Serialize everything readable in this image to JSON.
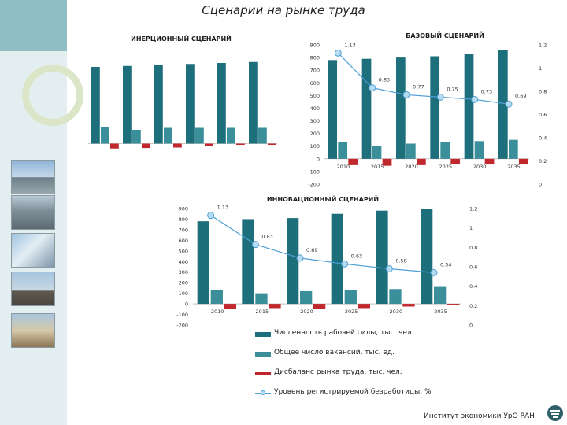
{
  "title": "Сценарии на рынке труда",
  "footer": {
    "institute": "Институт экономики УрО РАН"
  },
  "colors": {
    "labor_force": "#1e6f7c",
    "vacancies": "#3a8f9a",
    "imbalance": "#c0282d",
    "unemployment_line": "#4f9fd6",
    "marker_fill": "#b8dcef",
    "side_panel": "#e3eef0"
  },
  "legend": [
    {
      "key": "labor_force",
      "label": "Численность рабочей силы, тыс. чел."
    },
    {
      "key": "vacancies",
      "label": "Общее число вакансий, тыс. ед."
    },
    {
      "key": "imbalance",
      "label": "Дисбаланс рынка труда, тыс. чел."
    },
    {
      "key": "unemployment",
      "label": "Уровень регистрируемой безработицы, %"
    }
  ],
  "chart_data": [
    {
      "id": "inertial",
      "type": "bar",
      "title": "ИНЕРЦИОННЫЙ СЦЕНАРИЙ",
      "categories": [
        "",
        "",
        "",
        "",
        "",
        ""
      ],
      "ylim": [
        -100,
        900
      ],
      "show_axis_labels": false,
      "series": [
        {
          "key": "labor_force",
          "values": [
            780,
            790,
            800,
            810,
            820,
            830
          ]
        },
        {
          "key": "vacancies",
          "values": [
            170,
            140,
            160,
            160,
            160,
            160
          ]
        },
        {
          "key": "imbalance",
          "values": [
            -50,
            -45,
            -40,
            -20,
            -10,
            0
          ]
        }
      ]
    },
    {
      "id": "base",
      "type": "bar",
      "title": "БАЗОВЫЙ СЦЕНАРИЙ",
      "categories": [
        "2010",
        "2015",
        "2020",
        "2025",
        "2030",
        "2035"
      ],
      "ylim": [
        -200,
        900
      ],
      "yticks": [
        -200,
        -100,
        0,
        100,
        200,
        300,
        400,
        500,
        600,
        700,
        800,
        900
      ],
      "y2lim": [
        0,
        1.2
      ],
      "y2ticks": [
        0,
        0.2,
        0.4,
        0.6,
        0.8,
        1,
        1.2
      ],
      "series": [
        {
          "key": "labor_force",
          "values": [
            780,
            790,
            800,
            810,
            830,
            860
          ]
        },
        {
          "key": "vacancies",
          "values": [
            130,
            100,
            120,
            130,
            140,
            150
          ]
        },
        {
          "key": "imbalance",
          "values": [
            -50,
            -55,
            -50,
            -40,
            -45,
            -45
          ]
        }
      ],
      "line": {
        "key": "unemployment",
        "values": [
          1.13,
          0.83,
          0.77,
          0.75,
          0.73,
          0.69
        ],
        "labels": [
          "1.13",
          "0.83",
          "0.77",
          "0.75",
          "0.73",
          "0.69"
        ]
      }
    },
    {
      "id": "innovation",
      "type": "bar",
      "title": "ИННОВАЦИОННЫЙ СЦЕНАРИЙ",
      "categories": [
        "2010",
        "2015",
        "2020",
        "2025",
        "2030",
        "2035"
      ],
      "ylim": [
        -200,
        900
      ],
      "yticks": [
        -200,
        -100,
        0,
        100,
        200,
        300,
        400,
        500,
        600,
        700,
        800,
        900
      ],
      "y2lim": [
        0,
        1.2
      ],
      "y2ticks": [
        0,
        0.2,
        0.4,
        0.6,
        0.8,
        1,
        1.2
      ],
      "series": [
        {
          "key": "labor_force",
          "values": [
            780,
            800,
            810,
            850,
            880,
            900
          ]
        },
        {
          "key": "vacancies",
          "values": [
            130,
            100,
            120,
            130,
            140,
            160
          ]
        },
        {
          "key": "imbalance",
          "values": [
            -50,
            -40,
            -50,
            -40,
            -25,
            -10
          ]
        }
      ],
      "line": {
        "key": "unemployment",
        "values": [
          1.13,
          0.83,
          0.69,
          0.63,
          0.58,
          0.54
        ],
        "labels": [
          "1.13",
          "0.83",
          "0.69",
          "0.63",
          "0.58",
          "0.54"
        ]
      }
    }
  ]
}
